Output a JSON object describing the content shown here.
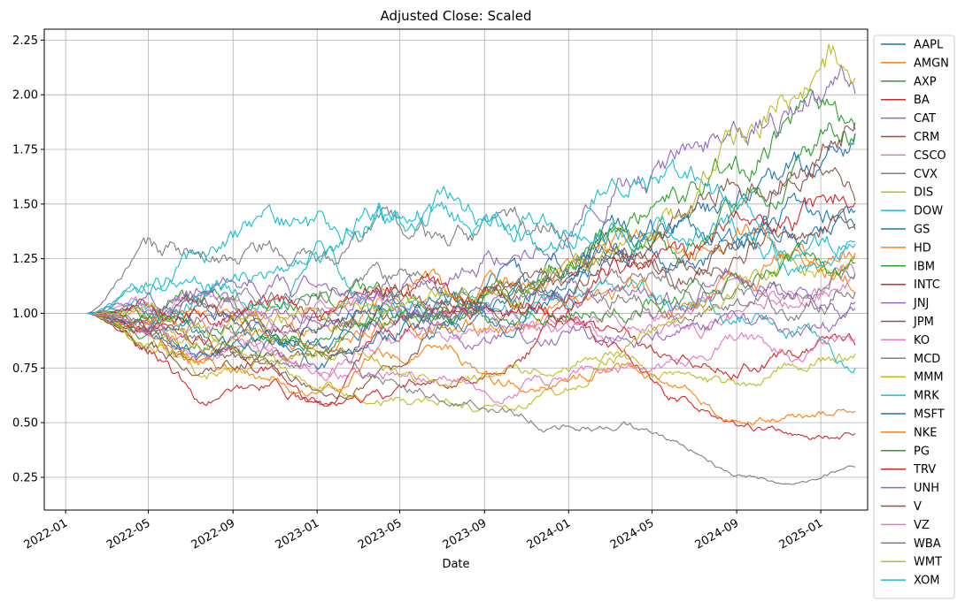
{
  "chart_data": {
    "type": "line",
    "title": "Adjusted Close: Scaled",
    "xlabel": "Date",
    "ylabel": "",
    "ylim": [
      0.1,
      2.3
    ],
    "xlim": [
      "2021-12-01",
      "2025-03-10"
    ],
    "x_ticks": [
      "2022-01",
      "2022-05",
      "2022-09",
      "2023-01",
      "2023-05",
      "2023-09",
      "2024-01",
      "2024-05",
      "2024-09",
      "2025-01"
    ],
    "y_ticks": [
      0.25,
      0.5,
      0.75,
      1.0,
      1.25,
      1.5,
      1.75,
      2.0,
      2.25
    ],
    "y_tick_labels": [
      "0.25",
      "0.50",
      "0.75",
      "1.00",
      "1.25",
      "1.50",
      "1.75",
      "2.00",
      "2.25"
    ],
    "grid": true,
    "legend_position": "outside-right",
    "start_date": "2022-02-01",
    "end_date": "2025-02-20",
    "series": [
      {
        "name": "AAPL",
        "color": "#1f77b4",
        "anchors": [
          1.0,
          0.95,
          1.05,
          0.92,
          0.85,
          1.0,
          0.95,
          1.15,
          1.05,
          1.3,
          1.2,
          1.3,
          1.45,
          1.4
        ]
      },
      {
        "name": "AMGN",
        "color": "#ff7f0e",
        "anchors": [
          1.0,
          1.02,
          1.05,
          0.98,
          0.95,
          1.05,
          1.1,
          1.15,
          1.2,
          1.3,
          1.25,
          1.35,
          1.25,
          1.2
        ]
      },
      {
        "name": "AXP",
        "color": "#2ca02c",
        "anchors": [
          1.0,
          0.9,
          0.85,
          0.88,
          0.92,
          0.98,
          0.95,
          1.05,
          1.25,
          1.4,
          1.5,
          1.65,
          1.85,
          1.92
        ]
      },
      {
        "name": "BA",
        "color": "#d62728",
        "anchors": [
          1.0,
          0.85,
          0.6,
          0.68,
          0.58,
          0.85,
          1.0,
          1.05,
          1.0,
          0.9,
          0.82,
          0.78,
          0.8,
          0.85
        ]
      },
      {
        "name": "CAT",
        "color": "#9467bd",
        "anchors": [
          1.0,
          0.98,
          1.05,
          0.92,
          1.05,
          1.1,
          1.2,
          1.3,
          1.35,
          1.6,
          1.7,
          1.8,
          1.95,
          2.1
        ]
      },
      {
        "name": "CRM",
        "color": "#8c564b",
        "anchors": [
          1.0,
          0.9,
          0.78,
          0.75,
          0.65,
          0.7,
          0.95,
          1.05,
          1.2,
          1.3,
          1.15,
          1.25,
          1.7,
          1.55
        ]
      },
      {
        "name": "CSCO",
        "color": "#e377c2",
        "anchors": [
          1.0,
          0.92,
          0.8,
          0.85,
          0.75,
          0.85,
          0.9,
          0.92,
          0.95,
          0.9,
          0.92,
          1.0,
          1.1,
          1.15
        ]
      },
      {
        "name": "CVX",
        "color": "#7f7f7f",
        "anchors": [
          1.0,
          1.28,
          1.25,
          1.3,
          1.2,
          1.35,
          1.3,
          1.35,
          1.4,
          1.2,
          1.15,
          1.1,
          1.0,
          1.1
        ]
      },
      {
        "name": "DIS",
        "color": "#bcbd22",
        "anchors": [
          1.0,
          0.88,
          0.72,
          0.8,
          0.65,
          0.6,
          0.62,
          0.58,
          0.65,
          0.8,
          0.7,
          0.65,
          0.8,
          0.8
        ]
      },
      {
        "name": "DOW",
        "color": "#17becf",
        "anchors": [
          1.0,
          1.1,
          1.15,
          1.05,
          1.2,
          1.0,
          1.05,
          1.0,
          1.05,
          1.15,
          1.05,
          1.0,
          0.95,
          0.78
        ]
      },
      {
        "name": "GS",
        "color": "#1f77b4",
        "anchors": [
          1.0,
          0.95,
          0.9,
          0.85,
          0.95,
          1.05,
          0.98,
          0.95,
          1.1,
          1.3,
          1.4,
          1.5,
          1.65,
          1.85
        ]
      },
      {
        "name": "HD",
        "color": "#ff7f0e",
        "anchors": [
          1.0,
          0.95,
          0.8,
          0.88,
          0.82,
          0.92,
          0.95,
          0.95,
          1.05,
          1.1,
          1.05,
          1.15,
          1.25,
          1.25
        ]
      },
      {
        "name": "IBM",
        "color": "#2ca02c",
        "anchors": [
          1.0,
          1.02,
          1.05,
          1.0,
          1.05,
          1.1,
          1.05,
          1.1,
          1.2,
          1.4,
          1.25,
          1.5,
          1.65,
          1.8
        ]
      },
      {
        "name": "INTC",
        "color": "#d62728",
        "anchors": [
          1.0,
          0.95,
          0.85,
          0.75,
          0.6,
          0.62,
          0.7,
          0.72,
          0.95,
          0.85,
          0.62,
          0.48,
          0.45,
          0.44
        ]
      },
      {
        "name": "JNJ",
        "color": "#9467bd",
        "anchors": [
          1.0,
          1.02,
          1.05,
          1.03,
          1.0,
          0.98,
          0.92,
          0.88,
          0.9,
          0.88,
          0.9,
          0.95,
          0.92,
          0.95
        ]
      },
      {
        "name": "JPM",
        "color": "#8c564b",
        "anchors": [
          1.0,
          0.85,
          0.75,
          0.8,
          0.78,
          0.95,
          1.0,
          1.05,
          1.1,
          1.3,
          1.4,
          1.55,
          1.7,
          1.9
        ]
      },
      {
        "name": "KO",
        "color": "#e377c2",
        "anchors": [
          1.0,
          1.05,
          1.08,
          1.0,
          1.02,
          1.05,
          1.02,
          0.95,
          0.9,
          0.95,
          1.0,
          1.15,
          1.05,
          1.12
        ]
      },
      {
        "name": "MCD",
        "color": "#7f7f7f",
        "anchors": [
          1.0,
          1.0,
          1.05,
          1.05,
          1.1,
          1.15,
          1.1,
          1.05,
          1.15,
          1.1,
          1.0,
          1.05,
          1.1,
          1.2
        ]
      },
      {
        "name": "MMM",
        "color": "#bcbd22",
        "anchors": [
          1.0,
          0.92,
          0.85,
          0.78,
          0.82,
          0.75,
          0.7,
          0.72,
          0.75,
          0.8,
          1.0,
          1.1,
          1.2,
          1.25
        ]
      },
      {
        "name": "MRK",
        "color": "#17becf",
        "anchors": [
          1.0,
          1.0,
          1.1,
          1.15,
          1.35,
          1.45,
          1.5,
          1.4,
          1.3,
          1.65,
          1.6,
          1.5,
          1.25,
          1.3
        ]
      },
      {
        "name": "MSFT",
        "color": "#1f77b4",
        "anchors": [
          1.0,
          0.9,
          0.85,
          0.88,
          0.78,
          0.9,
          1.1,
          1.05,
          1.2,
          1.35,
          1.4,
          1.3,
          1.4,
          1.38
        ]
      },
      {
        "name": "NKE",
        "color": "#ff7f0e",
        "anchors": [
          1.0,
          0.9,
          0.75,
          0.72,
          0.62,
          0.8,
          0.82,
          0.7,
          0.7,
          0.75,
          0.65,
          0.52,
          0.52,
          0.55
        ]
      },
      {
        "name": "PG",
        "color": "#2ca02c",
        "anchors": [
          1.0,
          0.98,
          0.95,
          0.9,
          0.85,
          0.95,
          0.98,
          0.95,
          0.98,
          1.05,
          1.1,
          1.15,
          1.2,
          1.15
        ]
      },
      {
        "name": "TRV",
        "color": "#d62728",
        "anchors": [
          1.0,
          1.05,
          1.0,
          1.05,
          1.0,
          1.12,
          1.1,
          1.0,
          1.05,
          1.2,
          1.25,
          1.4,
          1.45,
          1.55
        ]
      },
      {
        "name": "UNH",
        "color": "#9467bd",
        "anchors": [
          1.0,
          1.05,
          1.1,
          1.15,
          1.1,
          1.05,
          1.0,
          1.05,
          1.05,
          1.1,
          1.05,
          1.2,
          1.1,
          1.05
        ]
      },
      {
        "name": "V",
        "color": "#8c564b",
        "anchors": [
          1.0,
          0.95,
          1.0,
          0.92,
          0.95,
          1.05,
          1.02,
          1.1,
          1.15,
          1.2,
          1.25,
          1.3,
          1.35,
          1.45
        ]
      },
      {
        "name": "VZ",
        "color": "#e377c2",
        "anchors": [
          1.0,
          0.95,
          0.92,
          0.82,
          0.75,
          0.72,
          0.72,
          0.65,
          0.68,
          0.75,
          0.75,
          0.85,
          0.8,
          0.9
        ]
      },
      {
        "name": "WBA",
        "color": "#7f7f7f",
        "anchors": [
          1.0,
          0.95,
          0.85,
          0.75,
          0.85,
          0.7,
          0.65,
          0.55,
          0.5,
          0.48,
          0.4,
          0.25,
          0.22,
          0.28
        ]
      },
      {
        "name": "WMT",
        "color": "#bcbd22",
        "anchors": [
          1.0,
          1.02,
          0.9,
          0.95,
          1.0,
          1.05,
          1.05,
          1.1,
          1.2,
          1.3,
          1.45,
          1.75,
          2.05,
          2.18
        ]
      },
      {
        "name": "XOM",
        "color": "#17becf",
        "anchors": [
          1.0,
          1.15,
          1.25,
          1.4,
          1.35,
          1.45,
          1.45,
          1.4,
          1.35,
          1.35,
          1.4,
          1.35,
          1.3,
          1.32
        ]
      }
    ]
  }
}
